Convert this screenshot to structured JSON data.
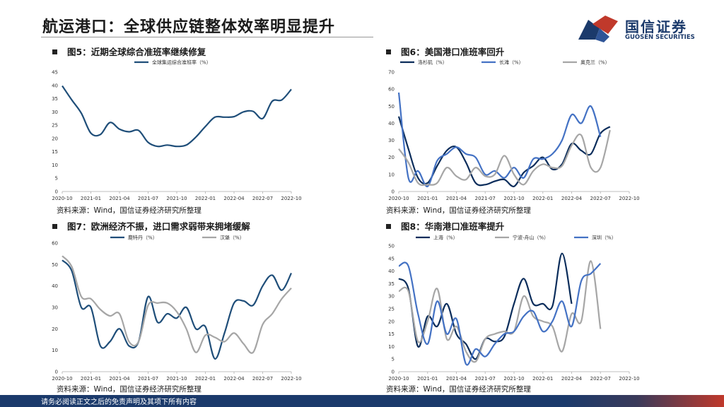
{
  "header": {
    "title": "航运港口：全球供应链整体效率明显提升",
    "logo_cn": "国信证券",
    "logo_en": "GUOSEN SECURITIES"
  },
  "footer": {
    "disclaimer": "请务必阅读正文之后的免责声明及其项下所有内容"
  },
  "figures": [
    {
      "title": "图5：近期全球综合准班率继续修复",
      "source": "资料来源：Wind，国信证券经济研究所整理"
    },
    {
      "title": "图6：美国港口准班率回升",
      "source": "资料来源：Wind，国信证券经济研究所整理"
    },
    {
      "title": "图7：欧洲经济不振，进口需求弱带来拥堵缓解",
      "source": "资料来源：Wind，国信证券经济研究所整理"
    },
    {
      "title": "图8：华南港口准班率提升",
      "source": "资料来源：Wind，国信证券经济研究所整理"
    }
  ],
  "chart_data": [
    {
      "type": "line",
      "title": "图5：近期全球综合准班率继续修复",
      "x": [
        "2020-10",
        "2020-11",
        "2020-12",
        "2021-01",
        "2021-02",
        "2021-03",
        "2021-04",
        "2021-05",
        "2021-06",
        "2021-07",
        "2021-08",
        "2021-09",
        "2021-10",
        "2021-11",
        "2021-12",
        "2022-01",
        "2022-02",
        "2022-03",
        "2022-04",
        "2022-05",
        "2022-06",
        "2022-07",
        "2022-08",
        "2022-09",
        "2022-10"
      ],
      "x_ticks": [
        "2020-10",
        "2021-01",
        "2021-04",
        "2021-07",
        "2021-10",
        "2022-01",
        "2022-04",
        "2022-07",
        "2022-10"
      ],
      "ylim": [
        0,
        45
      ],
      "y_ticks": [
        0,
        5,
        10,
        15,
        20,
        25,
        30,
        35,
        40,
        45
      ],
      "series": [
        {
          "name": "全球集运综合准班率（%）",
          "color": "#1f4e79",
          "values": [
            39.8,
            34.5,
            29.5,
            22.0,
            21.5,
            26.0,
            23.5,
            22.5,
            23.0,
            18.5,
            17.0,
            17.5,
            17.0,
            17.5,
            20.5,
            24.5,
            28.0,
            28.0,
            28.2,
            30.0,
            30.2,
            27.5,
            34.0,
            34.5,
            38.5
          ]
        }
      ]
    },
    {
      "type": "line",
      "title": "图6：美国港口准班率回升",
      "x": [
        "2020-10",
        "2020-11",
        "2020-12",
        "2021-01",
        "2021-02",
        "2021-03",
        "2021-04",
        "2021-05",
        "2021-06",
        "2021-07",
        "2021-08",
        "2021-09",
        "2021-10",
        "2021-11",
        "2021-12",
        "2022-01",
        "2022-02",
        "2022-03",
        "2022-04",
        "2022-05",
        "2022-06",
        "2022-07",
        "2022-08",
        "2022-09",
        "2022-10"
      ],
      "x_ticks": [
        "2020-10",
        "2021-01",
        "2021-04",
        "2021-07",
        "2021-10",
        "2022-01",
        "2022-04",
        "2022-07",
        "2022-10"
      ],
      "ylim": [
        0,
        70
      ],
      "y_ticks": [
        0,
        10,
        20,
        30,
        40,
        50,
        60,
        70
      ],
      "series": [
        {
          "name": "洛杉矶（%）",
          "color": "#0b2d5b",
          "values": [
            44,
            25,
            8,
            5,
            15,
            24,
            26,
            17,
            5,
            4,
            6,
            7,
            3,
            11,
            15,
            20,
            13,
            16,
            28,
            24,
            22,
            34,
            38,
            null,
            null
          ]
        },
        {
          "name": "长滩（%）",
          "color": "#4472c4",
          "values": [
            58,
            8,
            12,
            3,
            18,
            22,
            26,
            22,
            20,
            10,
            12,
            8,
            14,
            8,
            19,
            19,
            22,
            30,
            45,
            40,
            50,
            32,
            null,
            null,
            null
          ]
        },
        {
          "name": "奥克兰（%）",
          "color": "#a6a6a6",
          "values": [
            25,
            17,
            5,
            4,
            5,
            14,
            9,
            7,
            14,
            9,
            10,
            21,
            10,
            4,
            12,
            16,
            14,
            15,
            27,
            33,
            14,
            14,
            36,
            null,
            null
          ]
        }
      ]
    },
    {
      "type": "line",
      "title": "图7：欧洲经济不振，进口需求弱带来拥堵缓解",
      "x": [
        "2020-10",
        "2020-11",
        "2020-12",
        "2021-01",
        "2021-02",
        "2021-03",
        "2021-04",
        "2021-05",
        "2021-06",
        "2021-07",
        "2021-08",
        "2021-09",
        "2021-10",
        "2021-11",
        "2021-12",
        "2022-01",
        "2022-02",
        "2022-03",
        "2022-04",
        "2022-05",
        "2022-06",
        "2022-07",
        "2022-08",
        "2022-09",
        "2022-10"
      ],
      "x_ticks": [
        "2020-10",
        "2021-01",
        "2021-04",
        "2021-07",
        "2021-10",
        "2022-01",
        "2022-04",
        "2022-07",
        "2022-10"
      ],
      "ylim": [
        0,
        60
      ],
      "y_ticks": [
        0,
        10,
        20,
        30,
        40,
        50,
        60
      ],
      "series": [
        {
          "name": "鹿特丹（%）",
          "color": "#1f4e79",
          "values": [
            52,
            47,
            30,
            30,
            12,
            14,
            20,
            12,
            14,
            35,
            23,
            27,
            25,
            30,
            20,
            21,
            6,
            18,
            32,
            33,
            31,
            40,
            45,
            38,
            46
          ]
        },
        {
          "name": "汉堡（%）",
          "color": "#a6a6a6",
          "values": [
            54,
            49,
            35,
            34,
            29,
            26,
            27,
            14,
            14,
            31,
            32,
            32,
            28,
            20,
            9,
            17,
            16,
            14,
            18,
            13,
            9,
            22,
            27,
            34,
            39
          ]
        }
      ]
    },
    {
      "type": "line",
      "title": "图8：华南港口准班率提升",
      "x": [
        "2020-10",
        "2020-11",
        "2020-12",
        "2021-01",
        "2021-02",
        "2021-03",
        "2021-04",
        "2021-05",
        "2021-06",
        "2021-07",
        "2021-08",
        "2021-09",
        "2021-10",
        "2021-11",
        "2021-12",
        "2022-01",
        "2022-02",
        "2022-03",
        "2022-04",
        "2022-05",
        "2022-06",
        "2022-07",
        "2022-08",
        "2022-09",
        "2022-10"
      ],
      "x_ticks": [
        "2020-10",
        "2021-01",
        "2021-04",
        "2021-07",
        "2021-10",
        "2022-01",
        "2022-04",
        "2022-07",
        "2022-10"
      ],
      "ylim": [
        0,
        50
      ],
      "y_ticks": [
        0,
        5,
        10,
        15,
        20,
        25,
        30,
        35,
        40,
        45,
        50
      ],
      "series": [
        {
          "name": "上海（%）",
          "color": "#0b2d5b",
          "values": [
            37,
            33,
            10,
            22,
            18,
            27,
            15,
            11,
            5,
            13,
            12,
            14,
            27,
            37,
            27,
            27,
            26,
            47,
            27,
            null,
            null,
            null,
            null,
            null,
            null
          ]
        },
        {
          "name": "宁波-舟山（%）",
          "color": "#a6a6a6",
          "values": [
            32,
            32,
            12,
            20,
            33,
            13,
            18,
            8,
            4,
            13,
            15,
            16,
            16,
            30,
            22,
            20,
            18,
            8,
            23,
            20,
            44,
            17,
            null,
            null,
            null
          ]
        },
        {
          "name": "深圳（%）",
          "color": "#4472c4",
          "values": [
            42,
            42,
            23,
            11,
            28,
            15,
            21,
            3,
            9,
            6,
            11,
            15,
            16,
            22,
            24,
            16,
            20,
            28,
            18,
            36,
            39,
            43,
            null,
            null,
            null
          ]
        }
      ]
    }
  ]
}
